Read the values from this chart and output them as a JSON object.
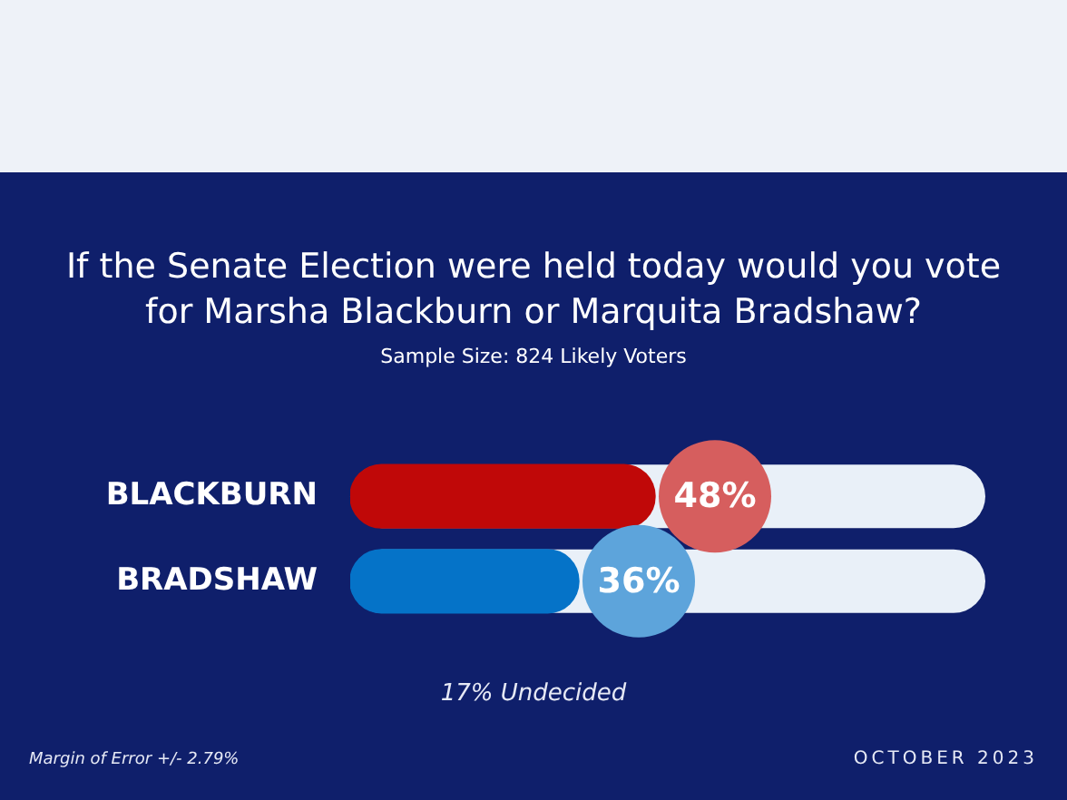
{
  "chart_data": {
    "type": "bar",
    "orientation": "horizontal",
    "title": "If the Senate Election were held today would you vote for Marsha Blackburn or Marquita Bradshaw?",
    "subtitle": "Sample Size: 824 Likely Voters",
    "categories": [
      "BLACKBURN",
      "BRADSHAW"
    ],
    "values": [
      48,
      36
    ],
    "colors": [
      "#c00808",
      "#0573c8"
    ],
    "value_labels": [
      "48%",
      "36%"
    ],
    "xlim": [
      0,
      100
    ],
    "tick_labels": "y",
    "legend": false,
    "annotations": [
      "17% Undecided",
      "Margin of Error +/- 2.79%",
      "OCTOBER 2023"
    ]
  }
}
